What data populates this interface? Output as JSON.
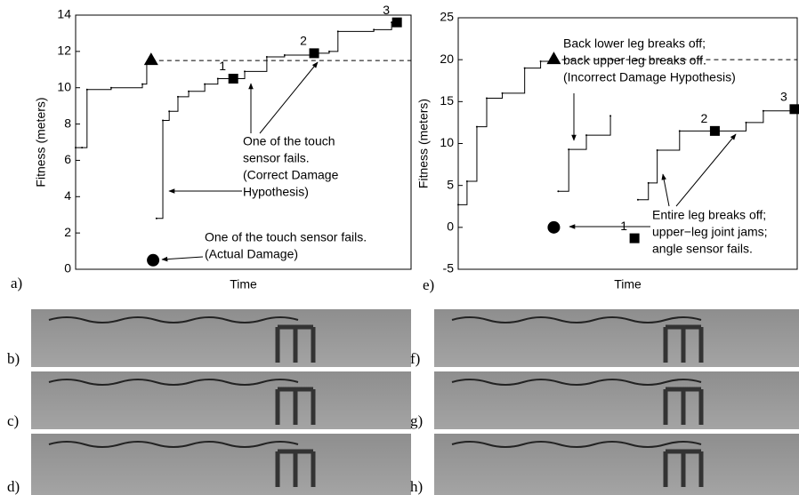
{
  "chart_data": [
    {
      "type": "line",
      "panel_label": "a)",
      "xlabel": "Time",
      "ylabel": "Fitness (meters)",
      "xlim": [
        0,
        100
      ],
      "ylim": [
        0,
        14
      ],
      "yticks": [
        0,
        2,
        4,
        6,
        8,
        10,
        12,
        14
      ],
      "series": [
        {
          "x": [
            0,
            1.9,
            3.4,
            10.6,
            19.9,
            21.2,
            22.5
          ],
          "values": [
            6.7,
            6.7,
            9.9,
            10.0,
            10.2,
            11.3,
            11.5
          ],
          "color": "#000000"
        },
        {
          "x": [
            24.1,
            26,
            27.9,
            30.5,
            33.7,
            38.5,
            42.4,
            47,
            50.4,
            57,
            62.3,
            71.1,
            75.6,
            78.2,
            88.9,
            94.2,
            95.8
          ],
          "values": [
            2.8,
            8.2,
            8.7,
            9.5,
            9.8,
            10.2,
            10.5,
            10.5,
            10.9,
            11.7,
            11.8,
            11.9,
            12.0,
            13.1,
            13.2,
            13.6,
            13.6
          ],
          "color": "#000000"
        }
      ],
      "threshold": 11.5,
      "markers": [
        {
          "shape": "triangle",
          "x": 22.5,
          "y": 11.5
        },
        {
          "shape": "circle",
          "x": 23.1,
          "y": 0.5
        },
        {
          "shape": "square",
          "x": 47,
          "y": 10.5,
          "label": "1"
        },
        {
          "shape": "square",
          "x": 71.1,
          "y": 11.9,
          "label": "2"
        },
        {
          "shape": "square",
          "x": 95.8,
          "y": 13.6,
          "label": "3"
        }
      ],
      "annotations": [
        [
          "One of the touch",
          "sensor fails.",
          "(Correct Damage",
          "Hypothesis)"
        ],
        [
          "One of the touch sensor fails.",
          "(Actual Damage)"
        ]
      ]
    },
    {
      "type": "line",
      "panel_label": "e)",
      "xlabel": "Time",
      "ylabel": "Fitness (meters)",
      "xlim": [
        0,
        100
      ],
      "ylim": [
        -5,
        25
      ],
      "yticks": [
        -5,
        0,
        5,
        10,
        15,
        20,
        25
      ],
      "series": [
        {
          "x": [
            0,
            2.6,
            5.5,
            8.4,
            13,
            19.6,
            24.3,
            28.2
          ],
          "values": [
            2.7,
            5.5,
            12,
            15.4,
            16,
            19,
            19.8,
            20
          ],
          "color": "#000000"
        },
        {
          "x": [
            29.5,
            32.6,
            37.8,
            44.9
          ],
          "values": [
            4.3,
            9.3,
            11,
            13.3
          ],
          "color": "#000000"
        },
        {
          "x": [
            53,
            56.1,
            58.7,
            65.3,
            75.7,
            84.9,
            90,
            99.2
          ],
          "values": [
            3.3,
            5.3,
            9.2,
            11.5,
            11.5,
            12.5,
            13.9,
            14.1
          ],
          "color": "#000000"
        }
      ],
      "threshold": 20,
      "markers": [
        {
          "shape": "triangle",
          "x": 28.2,
          "y": 20
        },
        {
          "shape": "circle",
          "x": 28.2,
          "y": 0
        },
        {
          "shape": "square",
          "x": 52,
          "y": -1.3,
          "label": "1"
        },
        {
          "shape": "square",
          "x": 75.7,
          "y": 11.5,
          "label": "2"
        },
        {
          "shape": "square",
          "x": 99.2,
          "y": 14.1,
          "label": "3"
        }
      ],
      "annotations": [
        [
          "Back lower leg breaks off;",
          "back upper leg breaks off.",
          "(Incorrect Damage Hypothesis)"
        ],
        [
          "Entire leg breaks off;",
          "upper−leg joint jams;",
          "angle sensor fails."
        ]
      ]
    }
  ],
  "panels": [
    {
      "label": "b)"
    },
    {
      "label": "c)"
    },
    {
      "label": "d)"
    },
    {
      "label": "f)"
    },
    {
      "label": "g)"
    },
    {
      "label": "h)"
    }
  ]
}
